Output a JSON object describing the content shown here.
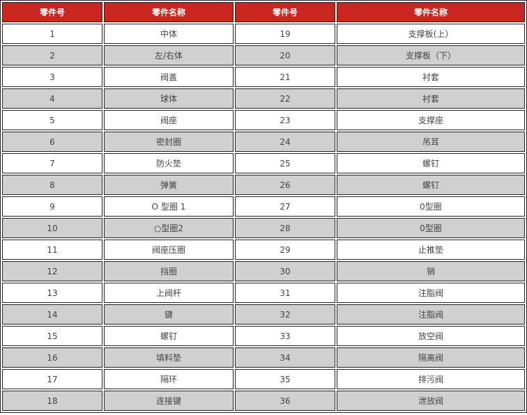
{
  "header": [
    "零件号",
    "零件名称",
    "零件号",
    "零件名称"
  ],
  "colors": {
    "header_bg": "#c8261f",
    "alt_row_bg": "#d0d0d0"
  },
  "rows": [
    [
      "1",
      "中体",
      "19",
      "支撑板(上）"
    ],
    [
      "2",
      "左/右体",
      "20",
      "支撑板（下）"
    ],
    [
      "3",
      "阀盖",
      "21",
      "衬套"
    ],
    [
      "4",
      "球体",
      "22",
      "衬套"
    ],
    [
      "5",
      "阀座",
      "23",
      "支撑座"
    ],
    [
      "6",
      "密封圈",
      "24",
      "吊耳"
    ],
    [
      "7",
      "防火垫",
      "25",
      "螺钉"
    ],
    [
      "8",
      "弹簧",
      "26",
      "螺钉"
    ],
    [
      "9",
      "O 型圈 1",
      "27",
      "0型圈"
    ],
    [
      "10",
      "○型圈2",
      "28",
      "0型圈"
    ],
    [
      "11",
      "阀座压圈",
      "29",
      "止推垫"
    ],
    [
      "12",
      "挡圈",
      "30",
      "销"
    ],
    [
      "13",
      "上阀杆",
      "31",
      "注脂阀"
    ],
    [
      "14",
      "键",
      "32",
      "注脂阀"
    ],
    [
      "15",
      "螺钉",
      "33",
      "放空阀"
    ],
    [
      "16",
      "填料垫",
      "34",
      "隔离阀"
    ],
    [
      "17",
      "隔环",
      "35",
      "排污阀"
    ],
    [
      "18",
      "连接键",
      "36",
      "泄放阀"
    ]
  ]
}
